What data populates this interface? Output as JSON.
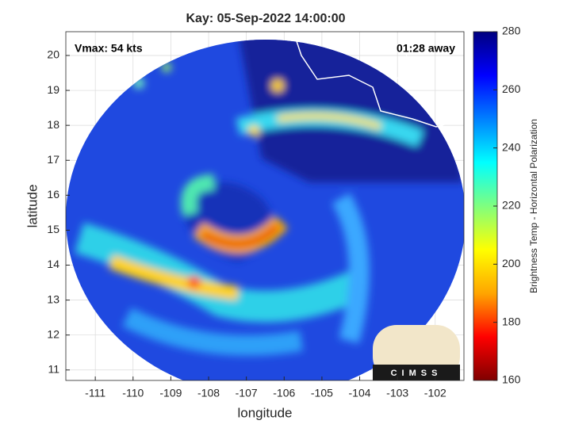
{
  "chart_data": {
    "type": "image",
    "title": "Kay: 05-Sep-2022 14:00:00",
    "xlabel": "longitude",
    "ylabel": "latitude",
    "annotations": [
      "Vmax: 54 kts",
      "01:28 away"
    ],
    "logo_text": "CIMSS",
    "xlim": [
      -111.78,
      -101.24
    ],
    "xticks": [
      -111,
      -110,
      -109,
      -108,
      -107,
      -106,
      -105,
      -104,
      -103,
      -102
    ],
    "ylim": [
      10.7,
      20.68
    ],
    "yticks": [
      11,
      12,
      13,
      14,
      15,
      16,
      17,
      18,
      19,
      20
    ],
    "grid": true,
    "colorbar": {
      "label": "Brightness Temp - Horizontal Polarization",
      "clim": [
        160,
        280
      ],
      "ticks": [
        160,
        180,
        200,
        220,
        240,
        260,
        280
      ],
      "colormap": [
        "#7f0000",
        "#ff0000",
        "#ffa500",
        "#ffff00",
        "#7fff7f",
        "#00ffff",
        "#0080ff",
        "#0000ff",
        "#00007f"
      ]
    }
  }
}
